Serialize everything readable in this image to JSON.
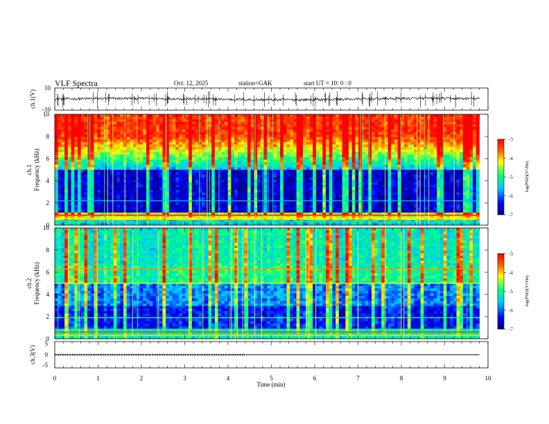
{
  "header": {
    "title": "VLF Spectra",
    "date": "Oct. 12, 2025",
    "station": "station=GAK",
    "start": "start UT = 10: 0 : 0"
  },
  "chart_data": [
    {
      "type": "line",
      "name": "ch1-waveform",
      "ylabel": "ch.1(V)",
      "ylim": [
        -10,
        10
      ],
      "yticks": [
        "10",
        "-10"
      ],
      "xlim": [
        0,
        10
      ]
    },
    {
      "type": "heatmap",
      "name": "ch1-spectrogram",
      "ylabel": "ch.1 Frequency (kHz)",
      "ylabel_top": "ch.1",
      "ylabel_bottom": "Frequency (kHz)",
      "ylim": [
        0,
        10
      ],
      "yticks": [
        "0",
        "2",
        "4",
        "6",
        "8",
        "10"
      ],
      "xlim": [
        0,
        9.8
      ],
      "colorbar": {
        "label": "log(PSD)(V²/Hz)",
        "range": [
          -7,
          -3
        ],
        "ticks": [
          "-3",
          "-4",
          "-5",
          "-6",
          "-7"
        ]
      }
    },
    {
      "type": "heatmap",
      "name": "ch2-spectrogram",
      "ylabel": "ch.2 Frequency (kHz)",
      "ylabel_top": "ch.2",
      "ylabel_bottom": "Frequency (kHz)",
      "ylim": [
        0,
        10
      ],
      "yticks": [
        "0",
        "2",
        "4",
        "6",
        "8",
        "10"
      ],
      "xlim": [
        0,
        9.8
      ],
      "colorbar": {
        "label": "log(PSD)(V²/Hz)",
        "range": [
          -7,
          -3
        ],
        "ticks": [
          "-3",
          "-4",
          "-5",
          "-6",
          "-7"
        ]
      }
    },
    {
      "type": "line",
      "name": "ch3-signal",
      "ylabel": "ch.3(V)",
      "ylim": [
        -5,
        5
      ],
      "yticks": [
        "5",
        "0",
        "-5"
      ],
      "xlim": [
        0,
        10
      ],
      "series": [
        {
          "name": "dotted-segment",
          "x": [
            0,
            4.4
          ],
          "y": [
            0,
            0
          ]
        },
        {
          "name": "solid-segment",
          "x": [
            4.4,
            9.8
          ],
          "y": [
            0,
            0
          ]
        }
      ],
      "xticks": [
        "0",
        "1",
        "2",
        "3",
        "4",
        "5",
        "6",
        "7",
        "8",
        "9",
        "10"
      ],
      "xlabel": "Time (min)"
    }
  ],
  "colors": {
    "low": "#000080",
    "mid": "#00c8ff",
    "green": "#33e033",
    "yellow": "#ffff00",
    "high": "#ff0000"
  }
}
